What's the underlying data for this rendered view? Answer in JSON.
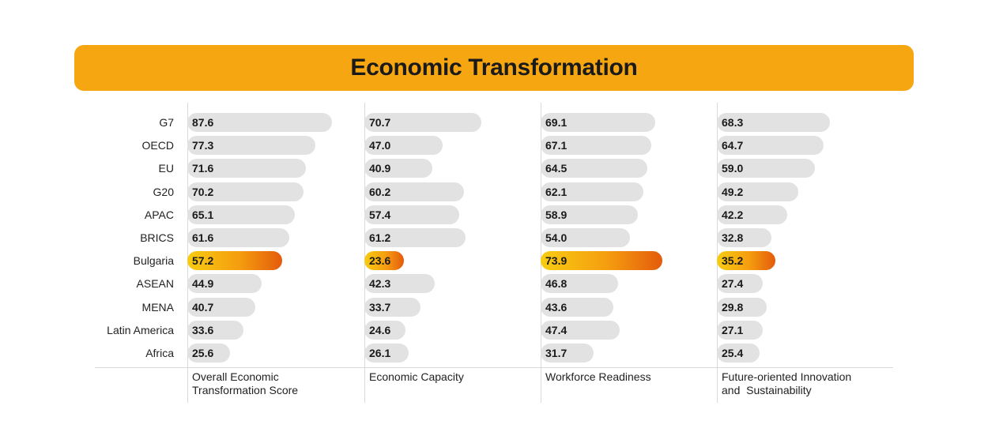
{
  "title": "Economic Transformation",
  "colors": {
    "banner": "#f6a611",
    "bar": "#e3e2e3",
    "highlight_start": "#f8cc12",
    "highlight_end": "#e45b0c"
  },
  "chart_data": {
    "type": "bar",
    "orientation": "horizontal",
    "title": "Economic Transformation",
    "categories": [
      "G7",
      "OECD",
      "EU",
      "G20",
      "APAC",
      "BRICS",
      "Bulgaria",
      "ASEAN",
      "MENA",
      "Latin America",
      "Africa"
    ],
    "highlight": "Bulgaria",
    "series": [
      {
        "name": "Overall Economic Transformation Score",
        "values": [
          87.6,
          77.3,
          71.6,
          70.2,
          65.1,
          61.6,
          57.2,
          44.9,
          40.7,
          33.6,
          25.6
        ]
      },
      {
        "name": "Economic Capacity",
        "values": [
          70.7,
          47.0,
          40.9,
          60.2,
          57.4,
          61.2,
          23.6,
          42.3,
          33.7,
          24.6,
          26.1
        ]
      },
      {
        "name": "Workforce Readiness",
        "values": [
          69.1,
          67.1,
          64.5,
          62.1,
          58.9,
          54.0,
          73.9,
          46.8,
          43.6,
          47.4,
          31.7
        ]
      },
      {
        "name": "Future-oriented Innovation and Sustainability",
        "values": [
          68.3,
          64.7,
          59.0,
          49.2,
          42.2,
          32.8,
          35.2,
          27.4,
          29.8,
          27.1,
          25.4
        ]
      }
    ],
    "column_labels": [
      [
        "Overall Economic",
        "Transformation Score"
      ],
      [
        "Economic Capacity"
      ],
      [
        "Workforce Readiness"
      ],
      [
        "Future-oriented Innovation",
        "and  Sustainability"
      ]
    ]
  }
}
